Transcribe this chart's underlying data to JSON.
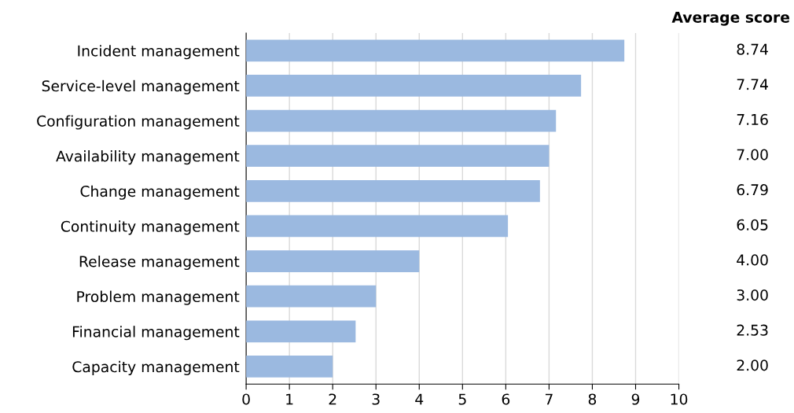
{
  "chart_data": {
    "type": "bar",
    "orientation": "horizontal",
    "categories": [
      "Incident management",
      "Service-level management",
      "Configuration management",
      "Availability management",
      "Change management",
      "Continuity management",
      "Release management",
      "Problem management",
      "Financial management",
      "Capacity management"
    ],
    "values": [
      8.74,
      7.74,
      7.16,
      7.0,
      6.79,
      6.05,
      4.0,
      3.0,
      2.53,
      2.0
    ],
    "value_labels": [
      "8.74",
      "7.74",
      "7.16",
      "7.00",
      "6.79",
      "6.05",
      "4.00",
      "3.00",
      "2.53",
      "2.00"
    ],
    "color": "#9bb9e0",
    "xlim": [
      0,
      10
    ],
    "xticks": [
      0,
      1,
      2,
      3,
      4,
      5,
      6,
      7,
      8,
      9,
      10
    ],
    "grid": "x",
    "annotations": [
      "Average score"
    ]
  }
}
